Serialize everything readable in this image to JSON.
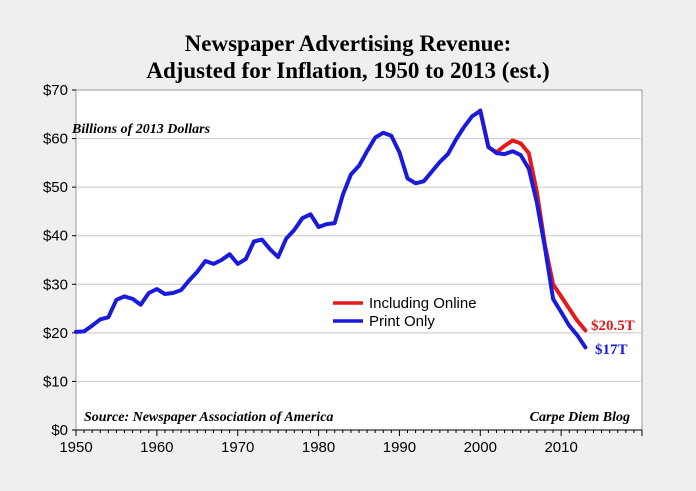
{
  "chart_data": {
    "type": "line",
    "title_line1": "Newspaper Advertising Revenue:",
    "title_line2": "Adjusted for Inflation, 1950 to 2013 (est.)",
    "ylabel_note": "Billions of 2013 Dollars",
    "source": "Source: Newspaper Association of America",
    "credit": "Carpe Diem Blog",
    "xlim": [
      1950,
      2020
    ],
    "ylim": [
      0,
      70
    ],
    "x_ticks": [
      1950,
      1960,
      1970,
      1980,
      1990,
      2000,
      2010
    ],
    "y_ticks": [
      0,
      10,
      20,
      30,
      40,
      50,
      60,
      70
    ],
    "y_tick_labels": [
      "$0",
      "$10",
      "$20",
      "$30",
      "$40",
      "$50",
      "$60",
      "$70"
    ],
    "x_tick_labels": [
      "1950",
      "1960",
      "1970",
      "1980",
      "1990",
      "2000",
      "2010"
    ],
    "grid": "horizontal",
    "legend_position": "center-right",
    "series": [
      {
        "name": "Including Online",
        "color": "#e41a1a",
        "x": [
          2000,
          2001,
          2002,
          2003,
          2004,
          2005,
          2006,
          2007,
          2008,
          2009,
          2010,
          2011,
          2012,
          2013
        ],
        "y": [
          65.8,
          58.2,
          57.2,
          58.5,
          59.6,
          59.0,
          57.0,
          49.0,
          38.0,
          30.0,
          27.5,
          25.0,
          22.5,
          20.5
        ],
        "end_label": "$20.5T"
      },
      {
        "name": "Print Only",
        "color": "#1a1adb",
        "x": [
          1950,
          1951,
          1952,
          1953,
          1954,
          1955,
          1956,
          1957,
          1958,
          1959,
          1960,
          1961,
          1962,
          1963,
          1964,
          1965,
          1966,
          1967,
          1968,
          1969,
          1970,
          1971,
          1972,
          1973,
          1974,
          1975,
          1976,
          1977,
          1978,
          1979,
          1980,
          1981,
          1982,
          1983,
          1984,
          1985,
          1986,
          1987,
          1988,
          1989,
          1990,
          1991,
          1992,
          1993,
          1994,
          1995,
          1996,
          1997,
          1998,
          1999,
          2000,
          2001,
          2002,
          2003,
          2004,
          2005,
          2006,
          2007,
          2008,
          2009,
          2010,
          2011,
          2012,
          2013
        ],
        "y": [
          20.2,
          20.3,
          21.5,
          22.8,
          23.2,
          26.8,
          27.5,
          27.0,
          25.8,
          28.2,
          29.0,
          28.0,
          28.2,
          28.8,
          30.8,
          32.6,
          34.8,
          34.2,
          35.0,
          36.2,
          34.2,
          35.2,
          38.8,
          39.2,
          37.2,
          35.6,
          39.4,
          41.2,
          43.6,
          44.4,
          41.8,
          42.4,
          42.6,
          48.4,
          52.6,
          54.4,
          57.4,
          60.2,
          61.2,
          60.6,
          57.2,
          51.8,
          50.8,
          51.2,
          53.2,
          55.2,
          56.8,
          59.8,
          62.4,
          64.6,
          65.7,
          58.3,
          57.0,
          56.8,
          57.4,
          56.6,
          53.8,
          46.8,
          37.5,
          27.0,
          24.3,
          21.5,
          19.5,
          17.0
        ],
        "end_label": "$17T"
      }
    ]
  }
}
